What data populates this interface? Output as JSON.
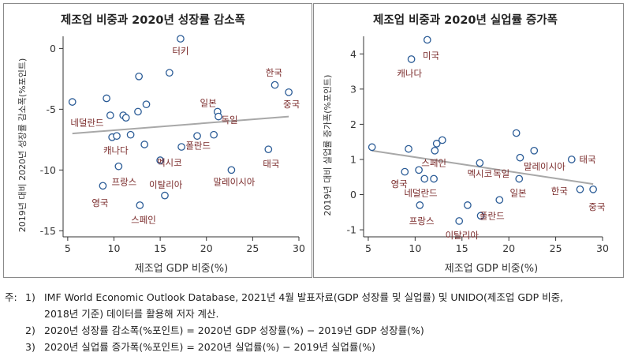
{
  "charts": [
    {
      "title": "제조업 비중과 2020년 성장률 감소폭",
      "xlabel": "제조업 GDP 비중(%)",
      "ylabel": "2019년 대비 2020년 성장률 감소폭(%포인트)",
      "xticks": [
        "5",
        "10",
        "15",
        "20",
        "25",
        "30"
      ],
      "yticks": [
        "0",
        "-5",
        "-10",
        "-15"
      ]
    },
    {
      "title": "제조업 비중과 2020년 실업률 증가폭",
      "xlabel": "제조업 GDP 비중(%)",
      "ylabel": "2019년 대비 실업률 증가폭(%포인트)",
      "xticks": [
        "5",
        "10",
        "15",
        "20",
        "25",
        "30"
      ],
      "yticks": [
        "4",
        "3",
        "2",
        "1",
        "0",
        "-1"
      ]
    }
  ],
  "chart_data": [
    {
      "type": "scatter",
      "title": "제조업 비중과 2020년 성장률 감소폭",
      "xlabel": "제조업 GDP 비중(%)",
      "ylabel": "2019년 대비 2020년 성장률 감소폭(%포인트)",
      "xlim": [
        4.5,
        30
      ],
      "ylim": [
        -15.5,
        1
      ],
      "grid": false,
      "points": [
        {
          "x": 5.5,
          "y": -4.4
        },
        {
          "x": 8.8,
          "y": -11.3
        },
        {
          "x": 9.2,
          "y": -4.1
        },
        {
          "x": 9.6,
          "y": -5.5
        },
        {
          "x": 9.8,
          "y": -7.3
        },
        {
          "x": 10.3,
          "y": -7.2
        },
        {
          "x": 10.5,
          "y": -9.7
        },
        {
          "x": 11.0,
          "y": -5.5
        },
        {
          "x": 11.3,
          "y": -5.7
        },
        {
          "x": 11.8,
          "y": -7.1
        },
        {
          "x": 12.6,
          "y": -5.2
        },
        {
          "x": 12.7,
          "y": -2.3
        },
        {
          "x": 12.8,
          "y": -12.9
        },
        {
          "x": 13.3,
          "y": -7.9
        },
        {
          "x": 13.5,
          "y": -4.6
        },
        {
          "x": 15.0,
          "y": -9.2
        },
        {
          "x": 15.5,
          "y": -12.1
        },
        {
          "x": 16.0,
          "y": -2.0
        },
        {
          "x": 17.2,
          "y": 0.8
        },
        {
          "x": 17.3,
          "y": -8.1
        },
        {
          "x": 19.0,
          "y": -7.2
        },
        {
          "x": 20.8,
          "y": -7.1
        },
        {
          "x": 21.2,
          "y": -5.2
        },
        {
          "x": 21.3,
          "y": -5.6
        },
        {
          "x": 22.7,
          "y": -10.0
        },
        {
          "x": 26.7,
          "y": -8.3
        },
        {
          "x": 27.4,
          "y": -3.0
        },
        {
          "x": 28.9,
          "y": -3.6
        }
      ],
      "labels": [
        {
          "text": "터키",
          "x": 17.2,
          "y": -0.2
        },
        {
          "text": "한국",
          "x": 27.3,
          "y": -2.0
        },
        {
          "text": "중국",
          "x": 29.2,
          "y": -4.6
        },
        {
          "text": "일본",
          "x": 20.2,
          "y": -4.5
        },
        {
          "text": "독일",
          "x": 22.5,
          "y": -5.9
        },
        {
          "text": "네덜란드",
          "x": 7.1,
          "y": -6.1
        },
        {
          "text": "캐나다",
          "x": 10.2,
          "y": -8.4
        },
        {
          "text": "폴란드",
          "x": 19.1,
          "y": -8.0
        },
        {
          "text": "멕시코",
          "x": 16.0,
          "y": -9.4
        },
        {
          "text": "태국",
          "x": 27.0,
          "y": -9.5
        },
        {
          "text": "프랑스",
          "x": 11.1,
          "y": -11.0
        },
        {
          "text": "이탈리아",
          "x": 15.6,
          "y": -11.2
        },
        {
          "text": "말레이시아",
          "x": 23.0,
          "y": -11.0
        },
        {
          "text": "영국",
          "x": 8.5,
          "y": -12.7
        },
        {
          "text": "스페인",
          "x": 13.2,
          "y": -14.1
        }
      ],
      "trendline": {
        "x": [
          5.5,
          28.9
        ],
        "y": [
          -7.0,
          -5.6
        ]
      }
    },
    {
      "type": "scatter",
      "title": "제조업 비중과 2020년 실업률 증가폭",
      "xlabel": "제조업 GDP 비중(%)",
      "ylabel": "2019년 대비 실업률 증가폭(%포인트)",
      "xlim": [
        4.5,
        30
      ],
      "ylim": [
        -1.2,
        4.5
      ],
      "grid": false,
      "points": [
        {
          "x": 5.4,
          "y": 1.35
        },
        {
          "x": 8.9,
          "y": 0.65
        },
        {
          "x": 9.3,
          "y": 1.3
        },
        {
          "x": 9.6,
          "y": 3.85
        },
        {
          "x": 10.4,
          "y": 0.7
        },
        {
          "x": 10.5,
          "y": -0.3
        },
        {
          "x": 11.0,
          "y": 0.45
        },
        {
          "x": 11.3,
          "y": 4.4
        },
        {
          "x": 12.0,
          "y": 0.45
        },
        {
          "x": 12.3,
          "y": 1.45
        },
        {
          "x": 12.9,
          "y": 1.55
        },
        {
          "x": 14.7,
          "y": -0.75
        },
        {
          "x": 15.6,
          "y": -0.3
        },
        {
          "x": 16.9,
          "y": 0.9
        },
        {
          "x": 17.0,
          "y": -0.6
        },
        {
          "x": 19.0,
          "y": -0.15
        },
        {
          "x": 20.8,
          "y": 1.75
        },
        {
          "x": 21.1,
          "y": 0.45
        },
        {
          "x": 21.2,
          "y": 1.05
        },
        {
          "x": 22.7,
          "y": 1.25
        },
        {
          "x": 26.7,
          "y": 1.0
        },
        {
          "x": 27.6,
          "y": 0.15
        },
        {
          "x": 29.0,
          "y": 0.15
        },
        {
          "x": 12.1,
          "y": 1.25
        }
      ],
      "labels": [
        {
          "text": "미국",
          "x": 11.7,
          "y": 3.95
        },
        {
          "text": "캐나다",
          "x": 9.4,
          "y": 3.45
        },
        {
          "text": "스페인",
          "x": 12.0,
          "y": 0.9
        },
        {
          "text": "멕시코",
          "x": 16.9,
          "y": 0.6
        },
        {
          "text": "독일",
          "x": 19.2,
          "y": 0.6
        },
        {
          "text": "말레이시아",
          "x": 23.8,
          "y": 0.8
        },
        {
          "text": "태국",
          "x": 28.4,
          "y": 1.0
        },
        {
          "text": "영국",
          "x": 8.3,
          "y": 0.3
        },
        {
          "text": "네덜란드",
          "x": 10.6,
          "y": 0.05
        },
        {
          "text": "일본",
          "x": 21.0,
          "y": 0.05
        },
        {
          "text": "한국",
          "x": 25.4,
          "y": 0.1
        },
        {
          "text": "중국",
          "x": 29.4,
          "y": -0.35
        },
        {
          "text": "프랑스",
          "x": 10.7,
          "y": -0.75
        },
        {
          "text": "폴란드",
          "x": 18.2,
          "y": -0.6
        },
        {
          "text": "이탈리아",
          "x": 15.0,
          "y": -1.15
        }
      ],
      "trendline": {
        "x": [
          5.4,
          29.0
        ],
        "y": [
          1.25,
          0.3
        ]
      }
    }
  ],
  "notes": [
    {
      "prefix": "주:",
      "num": "1)",
      "text": "IMF World Economic Outlook Database, 2021년 4월 발표자료(GDP 성장률 및 실업률) 및 UNIDO(제조업 GDP 비중,",
      "cont": "2018년 기준) 데이터를 활용해 저자 계산."
    },
    {
      "prefix": "",
      "num": "2)",
      "text": "2020년 성장률 감소폭(%포인트) = 2020년 GDP 성장률(%) − 2019년 GDP 성장률(%)"
    },
    {
      "prefix": "",
      "num": "3)",
      "text": "2020년 실업률 증가폭(%포인트) = 2020년 실업률(%) − 2019년 실업률(%)"
    }
  ],
  "colors": {
    "marker": "#2a5b96",
    "label": "#7a2a2a",
    "trend": "#a8a8a8",
    "axis": "#333333"
  }
}
